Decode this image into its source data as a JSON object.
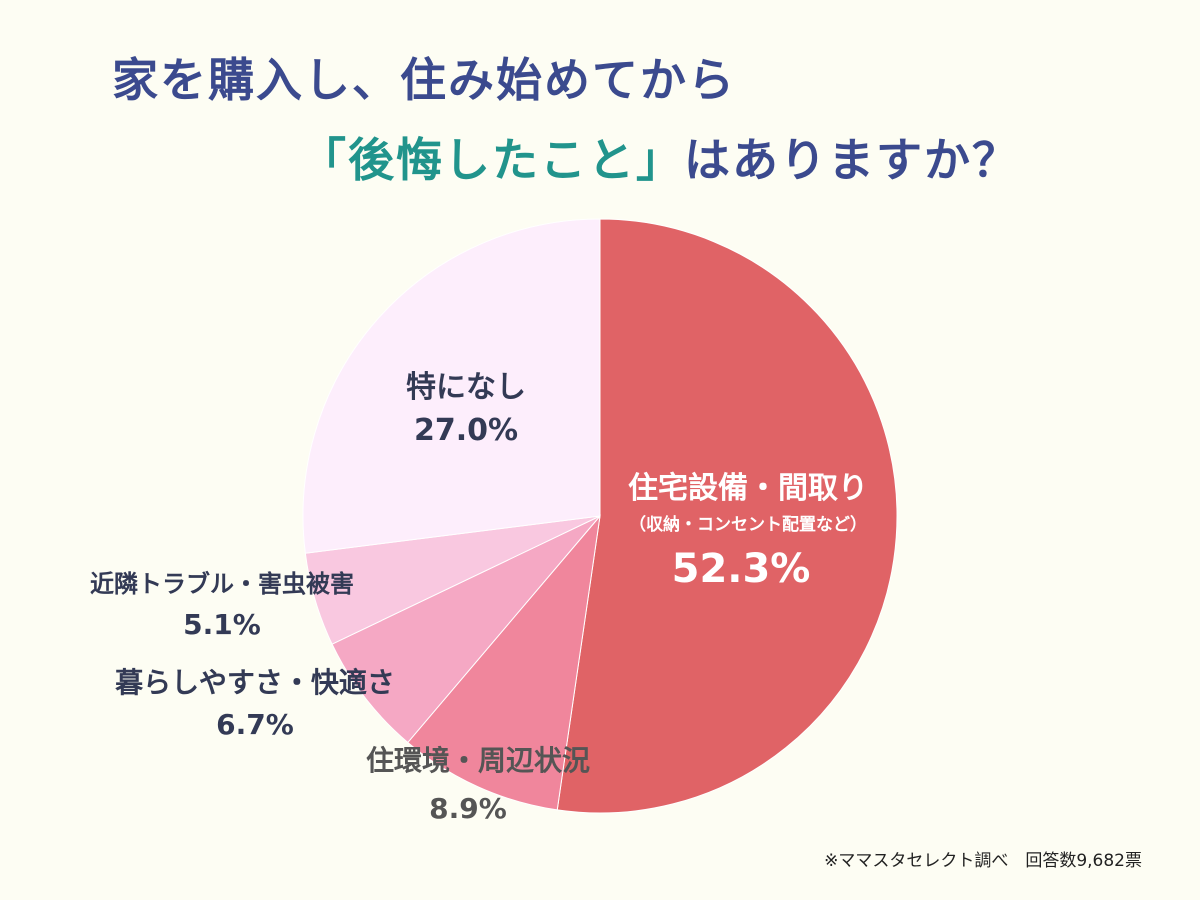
{
  "title": {
    "line1": "家を購入し、住み始めてから",
    "line2_accent": "「後悔したこと」",
    "line2_rest": "はありますか？"
  },
  "source": "※ママスタセレクト調べ　回答数9,682票",
  "colors": {
    "background": "#fdfdf3",
    "title": "#3b4a8e",
    "accent": "#21948c"
  },
  "chart_data": {
    "type": "pie",
    "unit": "%",
    "start_angle": "12 o'clock",
    "direction": "clockwise",
    "slices": [
      {
        "label": "住宅設備・間取り",
        "sublabel": "（収納・コンセント配置など）",
        "value": 52.3,
        "value_label": "52.3%",
        "color": "#e06366"
      },
      {
        "label": "住環境・周辺状況",
        "value": 8.9,
        "value_label": "8.9%",
        "color": "#f0869c"
      },
      {
        "label": "暮らしやすさ・快適さ",
        "value": 6.7,
        "value_label": "6.7%",
        "color": "#f5a8c4"
      },
      {
        "label": "近隣トラブル・害虫被害",
        "value": 5.1,
        "value_label": "5.1%",
        "color": "#f9c8e0"
      },
      {
        "label": "特になし",
        "value": 27.0,
        "value_label": "27.0%",
        "color": "#fdeefc"
      }
    ]
  }
}
